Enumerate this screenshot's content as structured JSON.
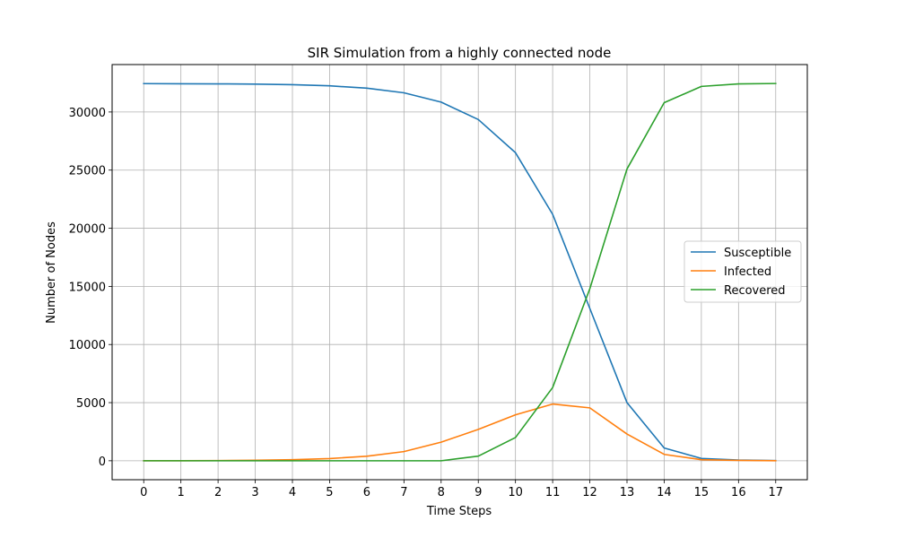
{
  "chart_data": {
    "type": "line",
    "title": "SIR Simulation from a highly connected node",
    "xlabel": "Time Steps",
    "ylabel": "Number of Nodes",
    "x": [
      0,
      1,
      2,
      3,
      4,
      5,
      6,
      7,
      8,
      9,
      10,
      11,
      12,
      13,
      14,
      15,
      16,
      17
    ],
    "xlim": [
      -0.85,
      17.85
    ],
    "ylim": [
      -1630,
      34080
    ],
    "yticks": [
      0,
      5000,
      10000,
      15000,
      20000,
      25000,
      30000
    ],
    "grid": true,
    "legend_position": "center-right",
    "series": [
      {
        "name": "Susceptible",
        "color": "#1f77b4",
        "values": [
          32440,
          32430,
          32420,
          32400,
          32350,
          32250,
          32050,
          31650,
          30850,
          29350,
          26500,
          21200,
          13100,
          5000,
          1100,
          200,
          60,
          20
        ]
      },
      {
        "name": "Infected",
        "color": "#ff7f0e",
        "values": [
          1,
          5,
          15,
          40,
          90,
          190,
          390,
          790,
          1600,
          2700,
          3950,
          4880,
          4550,
          2300,
          550,
          90,
          30,
          5
        ]
      },
      {
        "name": "Recovered",
        "color": "#2ca02c",
        "values": [
          0,
          0,
          0,
          0,
          0,
          0,
          0,
          0,
          0,
          400,
          2000,
          6300,
          14800,
          25100,
          30800,
          32200,
          32420,
          32450
        ]
      }
    ]
  }
}
